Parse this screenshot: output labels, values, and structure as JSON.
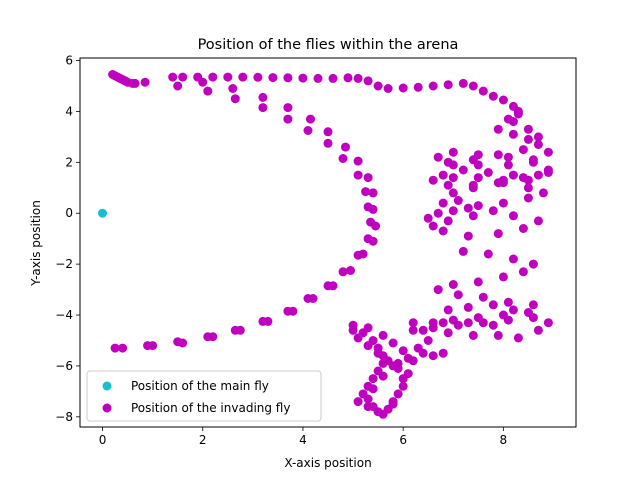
{
  "chart_data": {
    "type": "scatter",
    "title": "Position of the flies within the arena",
    "xlabel": "X-axis position",
    "ylabel": "Y-axis position",
    "xlim": [
      -0.45,
      9.45
    ],
    "ylim": [
      -8.4,
      6.1
    ],
    "xticks": [
      0,
      2,
      4,
      6,
      8
    ],
    "yticks": [
      6,
      4,
      2,
      0,
      -2,
      -4,
      -6,
      -8
    ],
    "legend_position": "lower-left",
    "grid": false,
    "series": [
      {
        "name": "Position of the main fly",
        "color": "#17becf",
        "points": [
          [
            0,
            0
          ]
        ]
      },
      {
        "name": "Position of the invading fly",
        "color": "#bf00bf",
        "points": [
          [
            0.2,
            5.45
          ],
          [
            0.25,
            5.4
          ],
          [
            0.3,
            5.35
          ],
          [
            0.35,
            5.3
          ],
          [
            0.4,
            5.25
          ],
          [
            0.45,
            5.2
          ],
          [
            0.5,
            5.15
          ],
          [
            0.6,
            5.1
          ],
          [
            0.65,
            5.1
          ],
          [
            0.85,
            5.15
          ],
          [
            1.5,
            5.0
          ],
          [
            2.1,
            4.8
          ],
          [
            2.65,
            4.5
          ],
          [
            3.2,
            4.15
          ],
          [
            3.7,
            3.7
          ],
          [
            4.1,
            3.25
          ],
          [
            4.5,
            2.75
          ],
          [
            4.8,
            2.15
          ],
          [
            5.1,
            1.5
          ],
          [
            5.25,
            0.85
          ],
          [
            5.3,
            0.25
          ],
          [
            5.35,
            -0.35
          ],
          [
            5.3,
            -1.0
          ],
          [
            5.1,
            -1.65
          ],
          [
            4.8,
            -2.3
          ],
          [
            4.5,
            -2.85
          ],
          [
            4.1,
            -3.35
          ],
          [
            3.7,
            -3.85
          ],
          [
            3.2,
            -4.25
          ],
          [
            2.65,
            -4.6
          ],
          [
            2.1,
            -4.85
          ],
          [
            1.5,
            -5.05
          ],
          [
            0.9,
            -5.2
          ],
          [
            0.25,
            -5.3
          ],
          [
            0.4,
            -5.3
          ],
          [
            1.0,
            -5.2
          ],
          [
            1.6,
            -5.1
          ],
          [
            2.2,
            -4.85
          ],
          [
            2.75,
            -4.6
          ],
          [
            3.3,
            -4.25
          ],
          [
            3.8,
            -3.85
          ],
          [
            4.2,
            -3.35
          ],
          [
            4.6,
            -2.85
          ],
          [
            4.95,
            -2.25
          ],
          [
            5.2,
            -1.6
          ],
          [
            5.4,
            -1.1
          ],
          [
            5.45,
            -0.5
          ],
          [
            5.4,
            0.15
          ],
          [
            5.4,
            0.8
          ],
          [
            5.3,
            1.4
          ],
          [
            5.1,
            2.05
          ],
          [
            4.85,
            2.6
          ],
          [
            4.5,
            3.2
          ],
          [
            4.15,
            3.7
          ],
          [
            3.7,
            4.15
          ],
          [
            3.2,
            4.55
          ],
          [
            2.6,
            4.9
          ],
          [
            2.0,
            5.15
          ],
          [
            1.4,
            5.35
          ],
          [
            1.6,
            5.35
          ],
          [
            1.9,
            5.35
          ],
          [
            2.2,
            5.35
          ],
          [
            2.5,
            5.35
          ],
          [
            2.8,
            5.35
          ],
          [
            3.1,
            5.34
          ],
          [
            3.4,
            5.33
          ],
          [
            3.7,
            5.32
          ],
          [
            4.0,
            5.31
          ],
          [
            4.3,
            5.3
          ],
          [
            4.6,
            5.3
          ],
          [
            4.9,
            5.32
          ],
          [
            5.1,
            5.3
          ],
          [
            5.3,
            5.2
          ],
          [
            5.5,
            5.0
          ],
          [
            5.7,
            4.9
          ],
          [
            6.0,
            4.92
          ],
          [
            6.3,
            4.95
          ],
          [
            6.6,
            5.0
          ],
          [
            6.9,
            5.05
          ],
          [
            7.2,
            5.1
          ],
          [
            7.4,
            5.0
          ],
          [
            7.6,
            4.8
          ],
          [
            7.8,
            4.6
          ],
          [
            8.0,
            4.45
          ],
          [
            8.2,
            4.2
          ],
          [
            8.3,
            4.0
          ],
          [
            8.1,
            3.7
          ],
          [
            7.9,
            3.3
          ],
          [
            8.2,
            3.1
          ],
          [
            8.5,
            2.9
          ],
          [
            8.7,
            2.7
          ],
          [
            8.4,
            2.5
          ],
          [
            7.9,
            2.3
          ],
          [
            7.4,
            2.1
          ],
          [
            7.0,
            1.9
          ],
          [
            7.2,
            1.7
          ],
          [
            7.7,
            1.6
          ],
          [
            8.2,
            1.5
          ],
          [
            8.7,
            1.5
          ],
          [
            8.9,
            1.6
          ],
          [
            8.4,
            1.4
          ],
          [
            7.9,
            1.2
          ],
          [
            7.4,
            1.0
          ],
          [
            7.0,
            0.8
          ],
          [
            7.1,
            0.5
          ],
          [
            7.3,
            0.2
          ],
          [
            7.8,
            0.1
          ],
          [
            8.2,
            -0.1
          ],
          [
            8.7,
            -0.3
          ],
          [
            8.4,
            -0.6
          ],
          [
            7.9,
            -0.8
          ],
          [
            7.3,
            -0.9
          ],
          [
            6.8,
            -0.7
          ],
          [
            6.6,
            -0.5
          ],
          [
            6.9,
            -0.3
          ],
          [
            7.4,
            -0.1
          ],
          [
            6.5,
            -0.2
          ],
          [
            6.7,
            0.0
          ],
          [
            6.8,
            0.4
          ],
          [
            7.0,
            0.1
          ],
          [
            7.5,
            0.3
          ],
          [
            8.0,
            0.4
          ],
          [
            8.5,
            0.6
          ],
          [
            8.8,
            0.8
          ],
          [
            8.5,
            1.0
          ],
          [
            8.0,
            1.3
          ],
          [
            7.5,
            1.4
          ],
          [
            7.0,
            1.4
          ],
          [
            6.8,
            1.5
          ],
          [
            6.6,
            1.3
          ],
          [
            6.9,
            1.1
          ],
          [
            7.4,
            1.1
          ],
          [
            8.0,
            1.2
          ],
          [
            8.5,
            1.3
          ],
          [
            8.9,
            1.7
          ],
          [
            8.6,
            2.0
          ],
          [
            8.1,
            2.2
          ],
          [
            7.5,
            2.3
          ],
          [
            7.0,
            2.4
          ],
          [
            6.7,
            2.2
          ],
          [
            6.9,
            2.0
          ],
          [
            7.5,
            1.9
          ],
          [
            8.1,
            1.9
          ],
          [
            8.6,
            2.1
          ],
          [
            8.9,
            2.4
          ],
          [
            8.7,
            3.0
          ],
          [
            8.5,
            3.3
          ],
          [
            8.2,
            3.6
          ],
          [
            8.3,
            3.9
          ],
          [
            7.2,
            -1.5
          ],
          [
            7.7,
            -1.6
          ],
          [
            8.2,
            -1.8
          ],
          [
            8.6,
            -2.0
          ],
          [
            8.4,
            -2.3
          ],
          [
            8.0,
            -2.5
          ],
          [
            7.5,
            -2.7
          ],
          [
            7.0,
            -2.8
          ],
          [
            6.7,
            -3.0
          ],
          [
            7.1,
            -3.2
          ],
          [
            7.6,
            -3.3
          ],
          [
            8.1,
            -3.5
          ],
          [
            8.6,
            -3.6
          ],
          [
            8.5,
            -3.9
          ],
          [
            8.0,
            -4.0
          ],
          [
            7.5,
            -4.1
          ],
          [
            7.0,
            -4.2
          ],
          [
            6.6,
            -4.3
          ],
          [
            6.4,
            -4.6
          ],
          [
            6.9,
            -4.7
          ],
          [
            7.4,
            -4.8
          ],
          [
            7.9,
            -4.8
          ],
          [
            8.3,
            -4.9
          ],
          [
            8.7,
            -4.6
          ],
          [
            8.9,
            -4.3
          ],
          [
            8.6,
            -4.1
          ],
          [
            8.1,
            -4.2
          ],
          [
            7.6,
            -4.3
          ],
          [
            7.1,
            -4.4
          ],
          [
            6.6,
            -4.5
          ],
          [
            6.2,
            -4.6
          ],
          [
            6.2,
            -4.3
          ],
          [
            6.8,
            -4.3
          ],
          [
            7.3,
            -4.3
          ],
          [
            7.8,
            -4.4
          ],
          [
            8.2,
            -3.8
          ],
          [
            7.8,
            -3.6
          ],
          [
            7.3,
            -3.7
          ],
          [
            6.9,
            -3.8
          ],
          [
            6.5,
            -5.0
          ],
          [
            6.3,
            -5.3
          ],
          [
            6.6,
            -5.6
          ],
          [
            6.2,
            -5.8
          ],
          [
            5.9,
            -5.9
          ],
          [
            6.1,
            -5.7
          ],
          [
            6.4,
            -5.5
          ],
          [
            6.8,
            -5.5
          ],
          [
            5.0,
            -4.4
          ],
          [
            5.2,
            -4.7
          ],
          [
            5.4,
            -5.0
          ],
          [
            5.5,
            -5.3
          ],
          [
            5.6,
            -5.6
          ],
          [
            5.6,
            -5.9
          ],
          [
            5.5,
            -6.2
          ],
          [
            5.4,
            -6.5
          ],
          [
            5.3,
            -6.8
          ],
          [
            5.2,
            -7.1
          ],
          [
            5.1,
            -7.4
          ],
          [
            5.3,
            -7.6
          ],
          [
            5.5,
            -7.8
          ],
          [
            5.7,
            -7.7
          ],
          [
            5.8,
            -7.4
          ],
          [
            5.9,
            -7.1
          ],
          [
            6.0,
            -6.8
          ],
          [
            6.0,
            -6.5
          ],
          [
            6.1,
            -6.3
          ],
          [
            5.9,
            -6.1
          ],
          [
            5.7,
            -5.8
          ],
          [
            5.5,
            -5.5
          ],
          [
            5.3,
            -5.2
          ],
          [
            5.1,
            -4.9
          ],
          [
            5.0,
            -4.6
          ],
          [
            5.3,
            -4.5
          ],
          [
            5.6,
            -4.8
          ],
          [
            5.8,
            -5.1
          ],
          [
            6.0,
            -5.4
          ],
          [
            5.8,
            -6.0
          ],
          [
            5.6,
            -6.4
          ],
          [
            5.4,
            -6.9
          ],
          [
            5.3,
            -7.3
          ],
          [
            5.4,
            -7.6
          ],
          [
            5.6,
            -7.9
          ],
          [
            5.8,
            -7.5
          ]
        ]
      }
    ]
  }
}
